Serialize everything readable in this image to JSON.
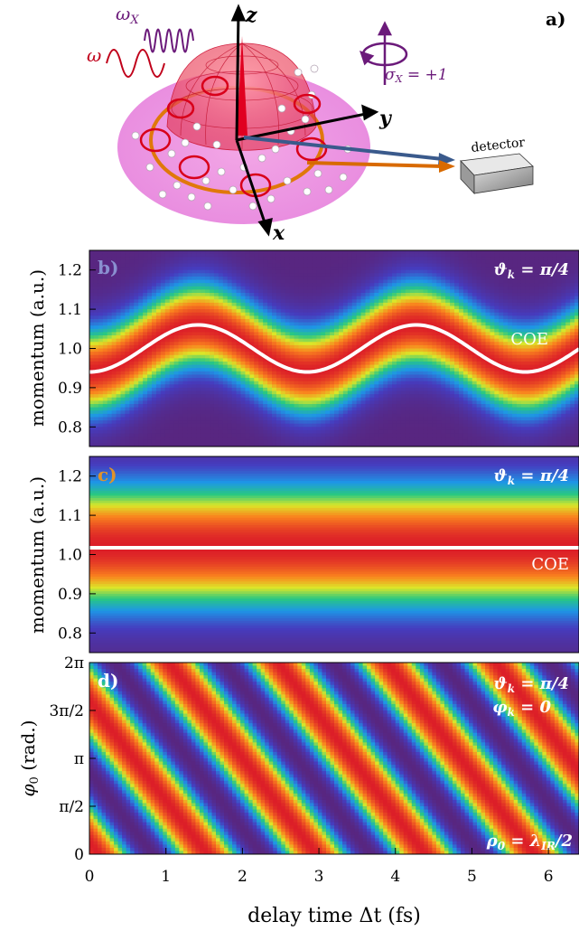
{
  "panel_a": {
    "label": "a)",
    "axes": {
      "z": "z",
      "y": "y",
      "x": "x"
    },
    "omega_x": "ωX",
    "omega": "ω",
    "sigma": "σX = +1",
    "detector": "detector"
  },
  "panel_b": {
    "label": "b)",
    "theta": "ϑk = π/4",
    "line": "COE"
  },
  "panel_c": {
    "label": "c)",
    "theta": "ϑk = π/4",
    "line": "COE"
  },
  "panel_d": {
    "label": "d)",
    "theta": "ϑk = π/4",
    "phi": "φk = 0",
    "rho": "ρ0 = λIR/2"
  },
  "axes": {
    "ylabel_momentum": "momentum (a.u.)",
    "ylabel_phase": "φ0 (rad.)",
    "xlabel": "delay time Δt (fs)",
    "momentum_ticks": [
      "1.2",
      "1.1",
      "1.0",
      "0.9",
      "0.8"
    ],
    "phase_ticks": [
      "2π",
      "3π/2",
      "π",
      "π/2",
      "0"
    ],
    "x_ticks": [
      "0",
      "1",
      "2",
      "3",
      "4",
      "5",
      "6"
    ]
  },
  "colors": {
    "label_b": "#8a8fd0",
    "label_c": "#e0932a",
    "purple": "#6b1a7a",
    "red": "#d0001c",
    "orange": "#d86a00",
    "blue": "#335588"
  },
  "chart_data": [
    {
      "type": "heatmap",
      "panel": "b",
      "xlim": [
        0,
        6.4
      ],
      "ylim": [
        0.75,
        1.25
      ],
      "coe_curve": {
        "center": 1.0,
        "amplitude": 0.06,
        "period_fs": 2.85,
        "x": [
          0,
          1.43,
          2.85,
          4.28,
          5.7,
          6.4
        ],
        "y": [
          0.94,
          1.06,
          0.94,
          1.06,
          0.94,
          0.99
        ]
      }
    },
    {
      "type": "heatmap",
      "panel": "c",
      "xlim": [
        0,
        6.4
      ],
      "ylim": [
        0.75,
        1.25
      ],
      "coe_curve": {
        "x": [
          0,
          6.4
        ],
        "y": [
          1.02,
          1.02
        ]
      }
    },
    {
      "type": "heatmap",
      "panel": "d",
      "xlim": [
        0,
        6.4
      ],
      "ylim_rad": [
        0,
        6.283
      ],
      "stripe_period_fs": 2.85
    }
  ]
}
